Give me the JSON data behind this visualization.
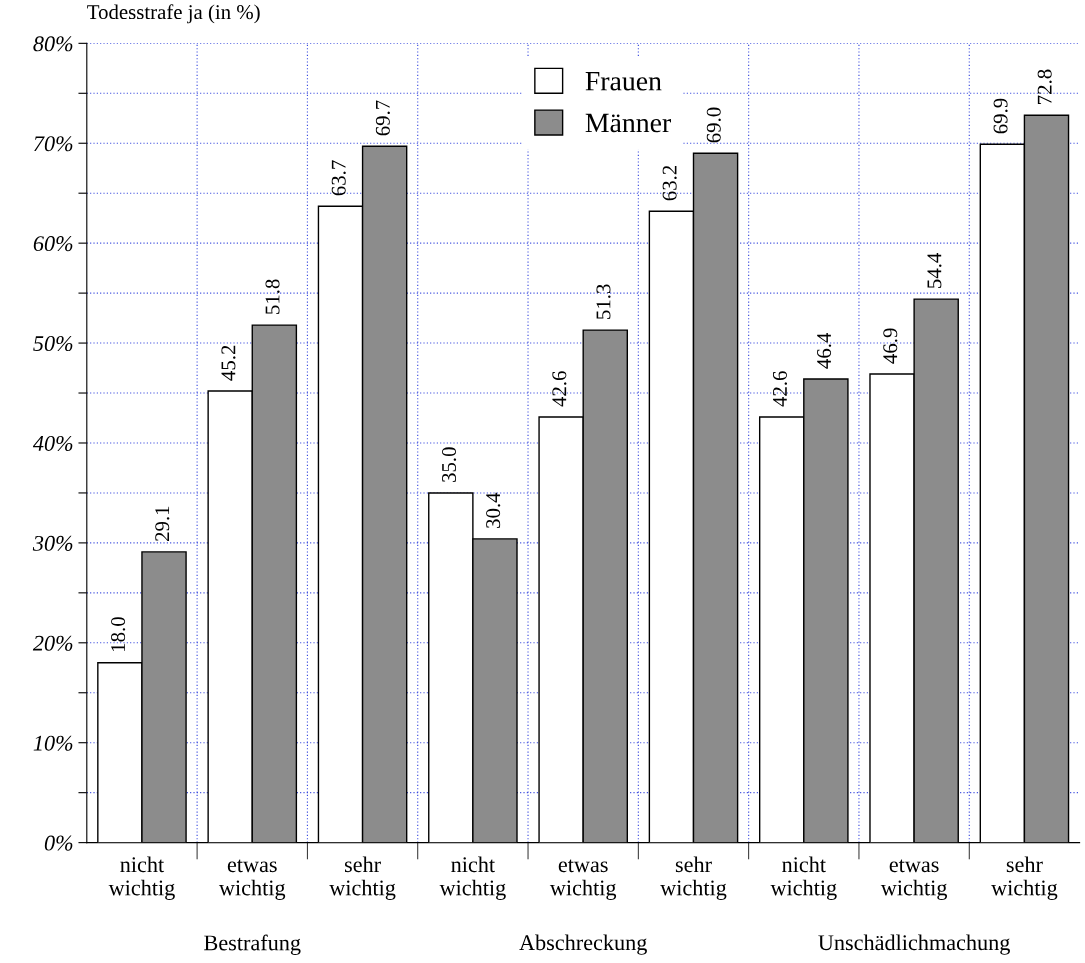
{
  "chart_data": {
    "type": "bar",
    "ylabel": "Todesstrafe ja (in %)",
    "categories": [
      "nicht\nwichtig",
      "etwas\nwichtig",
      "sehr\nwichtig",
      "nicht\nwichtig",
      "etwas\nwichtig",
      "sehr\nwichtig",
      "nicht\nwichtig",
      "etwas\nwichtig",
      "sehr\nwichtig"
    ],
    "series": [
      {
        "name": "Frauen",
        "color": "#ffffff",
        "values": [
          18.0,
          45.2,
          63.7,
          35.0,
          42.6,
          63.2,
          42.6,
          46.9,
          69.9
        ],
        "value_labels": [
          "18.0",
          "45.2",
          "63.7",
          "35.0",
          "42.6",
          "63.2",
          "42.6",
          "46.9",
          "69.9"
        ]
      },
      {
        "name": "Männer",
        "color": "#8c8c8c",
        "values": [
          29.1,
          51.8,
          69.7,
          30.4,
          51.3,
          69.0,
          46.4,
          54.4,
          72.8
        ],
        "value_labels": [
          "29.1",
          "51.8",
          "69.7",
          "30.4",
          "51.3",
          "69.0",
          "46.4",
          "54.4",
          "72.8"
        ]
      }
    ],
    "ylim": [
      0,
      80
    ],
    "yticks": [
      {
        "value": 0,
        "label": "0%"
      },
      {
        "value": 5,
        "label": null
      },
      {
        "value": 10,
        "label": "10%"
      },
      {
        "value": 15,
        "label": null
      },
      {
        "value": 20,
        "label": "20%"
      },
      {
        "value": 25,
        "label": null
      },
      {
        "value": 30,
        "label": "30%"
      },
      {
        "value": 35,
        "label": null
      },
      {
        "value": 40,
        "label": "40%"
      },
      {
        "value": 45,
        "label": null
      },
      {
        "value": 50,
        "label": "50%"
      },
      {
        "value": 55,
        "label": null
      },
      {
        "value": 60,
        "label": "60%"
      },
      {
        "value": 65,
        "label": null
      },
      {
        "value": 70,
        "label": "70%"
      },
      {
        "value": 75,
        "label": null
      },
      {
        "value": 80,
        "label": "80%"
      }
    ],
    "annotations": [
      "Bestrafung",
      "Abschreckung",
      "Unschädlichmachung"
    ],
    "grid": true,
    "legend": "top"
  }
}
